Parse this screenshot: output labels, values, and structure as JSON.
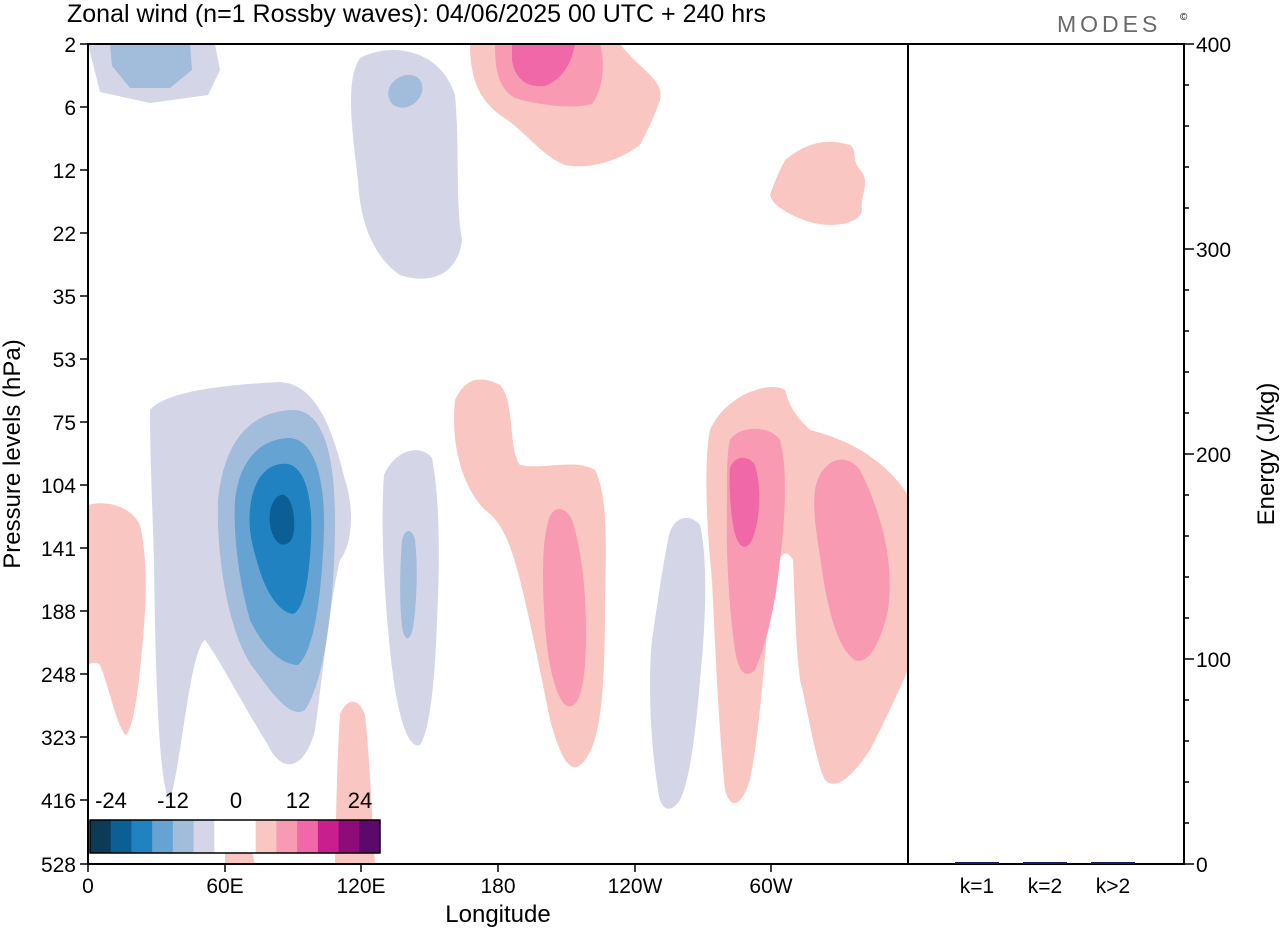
{
  "page": {
    "title": "Zonal wind (n=1 Rossby waves):  04/06/2025  00 UTC  + 240 hrs",
    "brand": "MODES",
    "brand_mark": "©"
  },
  "chart_data": [
    {
      "type": "heatmap",
      "title": "Zonal wind (n=1 Rossby waves):  04/06/2025  00 UTC  + 240 hrs",
      "xlabel": "Longitude",
      "ylabel": "Pressure levels (hPa)",
      "x_ticks": [
        "0",
        "60E",
        "120E",
        "180",
        "120W",
        "60W"
      ],
      "x_tick_values": [
        0,
        60,
        120,
        180,
        240,
        300
      ],
      "xlim": [
        0,
        360
      ],
      "y_ticks": [
        "2",
        "6",
        "12",
        "22",
        "35",
        "53",
        "75",
        "104",
        "141",
        "188",
        "248",
        "323",
        "416",
        "528"
      ],
      "y_scale": "pressure levels (non-linear, top = 2 hPa, bottom = 528 hPa)",
      "colorbar": {
        "tick_labels": [
          "-24",
          "-12",
          "0",
          "12",
          "24"
        ],
        "colors": [
          "#0d3a57",
          "#0b5f94",
          "#2182c2",
          "#65a4d2",
          "#a2bcdc",
          "#d4d6e8",
          "#ffffff",
          "#ffffff",
          "#f9c6c2",
          "#f89ab2",
          "#f168a8",
          "#c81e8e",
          "#8f0b7a",
          "#5b0a6b"
        ]
      },
      "features": [
        {
          "sign": "negative",
          "max_level": 4,
          "lon": 82,
          "top_hPa": 53,
          "bottom_hPa": 416,
          "peak_hPa": 120
        },
        {
          "sign": "negative",
          "max_level": 2,
          "lon": 18,
          "top_hPa": 2,
          "bottom_hPa": 6
        },
        {
          "sign": "negative",
          "max_level": 2,
          "lon": 138,
          "top_hPa": 3,
          "bottom_hPa": 35
        },
        {
          "sign": "negative",
          "max_level": 2,
          "lon": 141,
          "top_hPa": 104,
          "bottom_hPa": 416
        },
        {
          "sign": "negative",
          "max_level": 1,
          "lon": 260,
          "top_hPa": 104,
          "bottom_hPa": 416
        },
        {
          "sign": "positive",
          "max_level": 3,
          "lon": 196,
          "top_hPa": 2,
          "bottom_hPa": 12
        },
        {
          "sign": "positive",
          "max_level": 1,
          "lon": 330,
          "top_hPa": 10,
          "bottom_hPa": 22
        },
        {
          "sign": "positive",
          "max_level": 1,
          "lon": 10,
          "top_hPa": 104,
          "bottom_hPa": 323
        },
        {
          "sign": "positive",
          "max_level": 2,
          "lon": 205,
          "top_hPa": 53,
          "bottom_hPa": 416
        },
        {
          "sign": "positive",
          "max_level": 3,
          "lon": 287,
          "top_hPa": 53,
          "bottom_hPa": 416
        },
        {
          "sign": "positive",
          "max_level": 2,
          "lon": 336,
          "top_hPa": 104,
          "bottom_hPa": 248
        },
        {
          "sign": "positive",
          "max_level": 1,
          "lon": 117,
          "top_hPa": 323,
          "bottom_hPa": 528
        }
      ]
    },
    {
      "type": "bar",
      "categories": [
        "k=1",
        "k=2",
        "k>2"
      ],
      "values": [
        0.8,
        0.5,
        0.6
      ],
      "ylabel": "Energy (J/kg)",
      "ylim": [
        0,
        400
      ],
      "y_ticks": [
        "0",
        "100",
        "200",
        "300",
        "400"
      ],
      "bar_color": "#1a1a5e"
    }
  ]
}
